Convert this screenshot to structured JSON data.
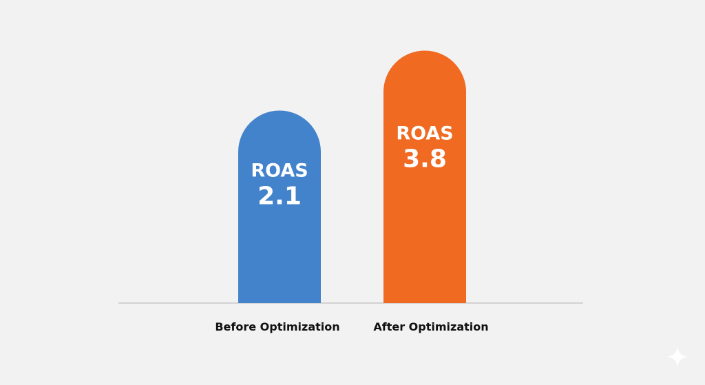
{
  "chart_data": {
    "type": "bar",
    "title": "",
    "xlabel": "",
    "ylabel": "",
    "categories": [
      "Before Optimization",
      "After Optimization"
    ],
    "values": [
      2.1,
      3.8
    ],
    "bar_labels": [
      {
        "metric": "ROAS",
        "value": "2.1"
      },
      {
        "metric": "ROAS",
        "value": "3.8"
      }
    ],
    "colors": [
      "#4383cc",
      "#f06a22"
    ],
    "grid": false,
    "legend": "none",
    "bar_shape": "rounded-top"
  },
  "icons": {
    "corner": "sparkle-icon"
  }
}
